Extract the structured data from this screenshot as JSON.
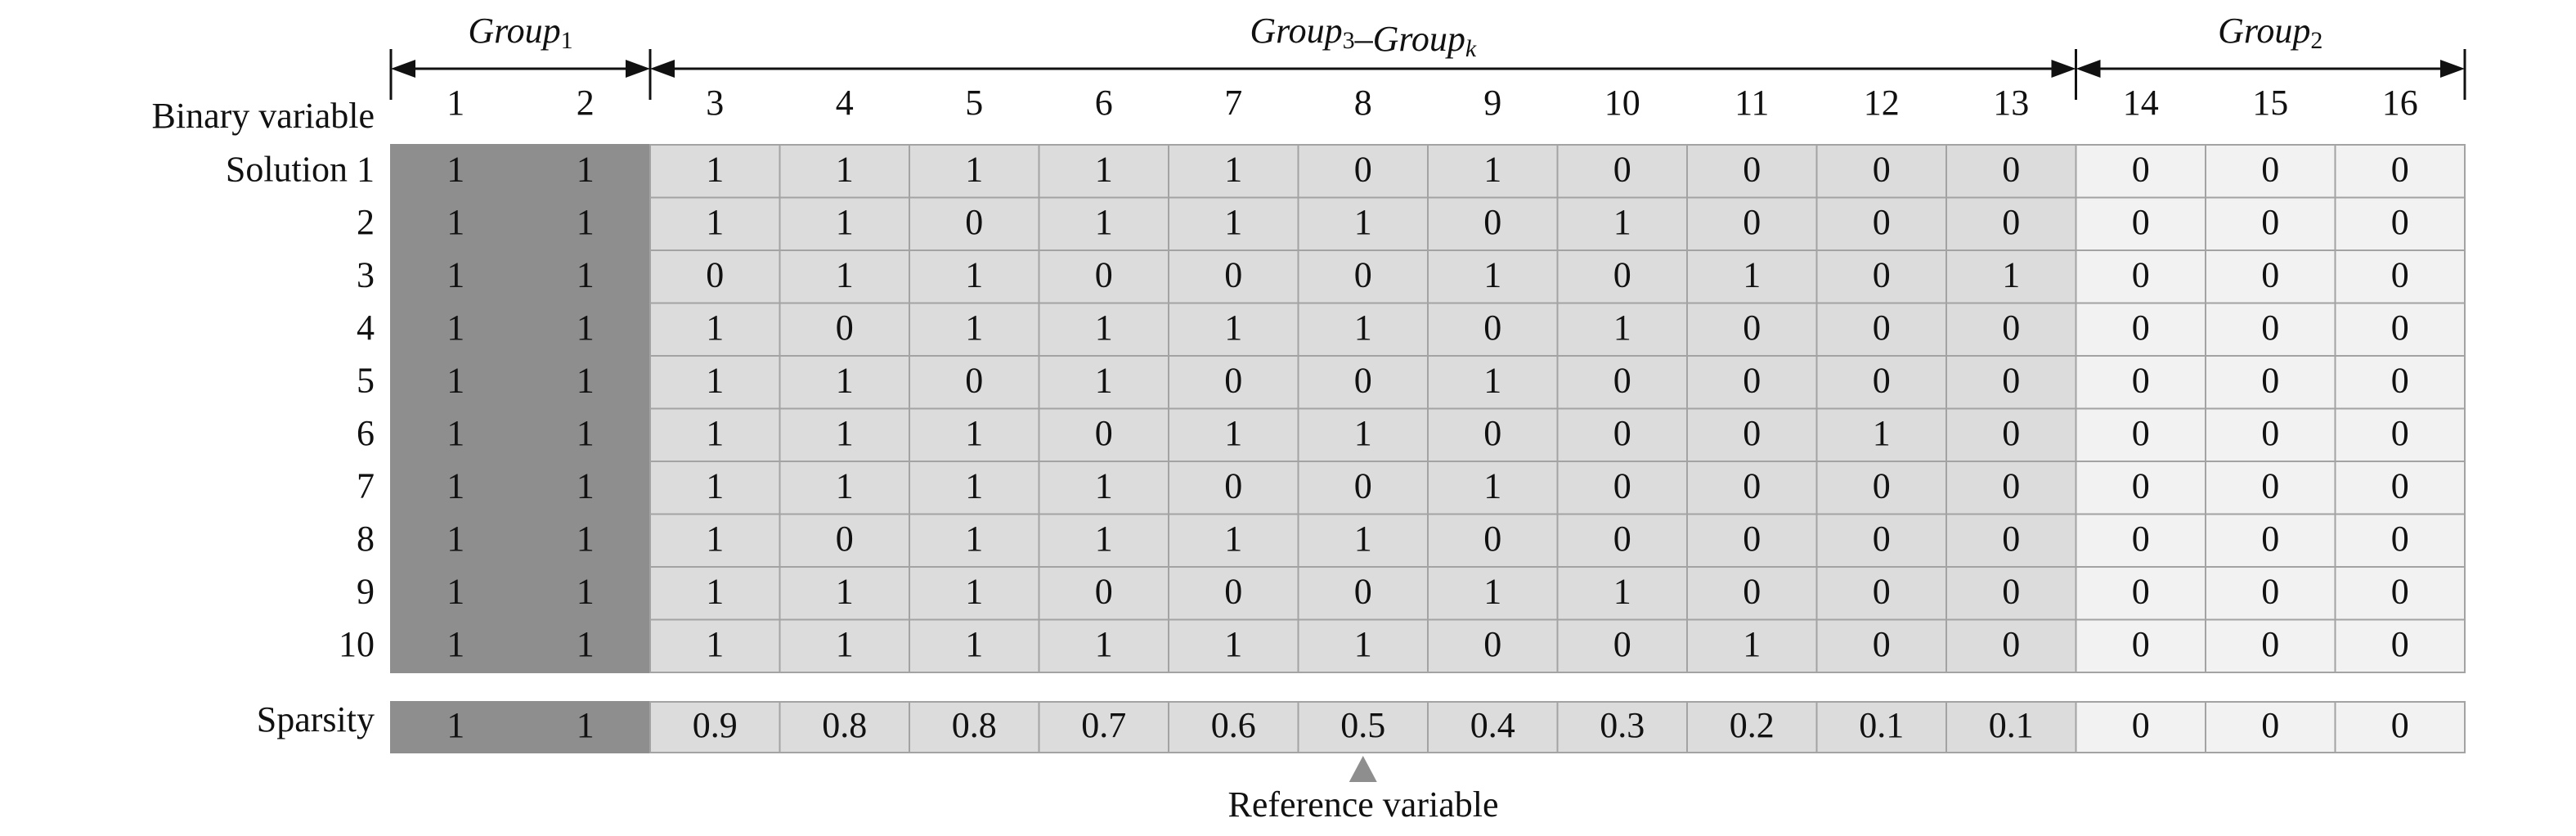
{
  "groups": [
    {
      "parts": [
        {
          "text": "Group",
          "sub": "1"
        }
      ]
    },
    {
      "parts": [
        {
          "text": "Group",
          "sub": "3"
        },
        {
          "text": "–Group",
          "sub": "k"
        }
      ]
    },
    {
      "parts": [
        {
          "text": "Group",
          "sub": "2"
        }
      ]
    }
  ],
  "row_header": "Binary variable",
  "variables": [
    1,
    2,
    3,
    4,
    5,
    6,
    7,
    8,
    9,
    10,
    11,
    12,
    13,
    14,
    15,
    16
  ],
  "solutions": [
    "Solution 1",
    "2",
    "3",
    "4",
    "5",
    "6",
    "7",
    "8",
    "9",
    "10"
  ],
  "rows": [
    [
      1,
      1,
      1,
      1,
      1,
      1,
      1,
      0,
      1,
      0,
      0,
      0,
      0,
      0,
      0,
      0
    ],
    [
      1,
      1,
      1,
      1,
      0,
      1,
      1,
      1,
      0,
      1,
      0,
      0,
      0,
      0,
      0,
      0
    ],
    [
      1,
      1,
      0,
      1,
      1,
      0,
      0,
      0,
      1,
      0,
      1,
      0,
      1,
      0,
      0,
      0
    ],
    [
      1,
      1,
      1,
      0,
      1,
      1,
      1,
      1,
      0,
      1,
      0,
      0,
      0,
      0,
      0,
      0
    ],
    [
      1,
      1,
      1,
      1,
      0,
      1,
      0,
      0,
      1,
      0,
      0,
      0,
      0,
      0,
      0,
      0
    ],
    [
      1,
      1,
      1,
      1,
      1,
      0,
      1,
      1,
      0,
      0,
      0,
      1,
      0,
      0,
      0,
      0
    ],
    [
      1,
      1,
      1,
      1,
      1,
      1,
      0,
      0,
      1,
      0,
      0,
      0,
      0,
      0,
      0,
      0
    ],
    [
      1,
      1,
      1,
      0,
      1,
      1,
      1,
      1,
      0,
      0,
      0,
      0,
      0,
      0,
      0,
      0
    ],
    [
      1,
      1,
      1,
      1,
      1,
      0,
      0,
      0,
      1,
      1,
      0,
      0,
      0,
      0,
      0,
      0
    ],
    [
      1,
      1,
      1,
      1,
      1,
      1,
      1,
      1,
      0,
      0,
      1,
      0,
      0,
      0,
      0,
      0
    ]
  ],
  "sparsity_label": "Sparsity",
  "sparsity": [
    1,
    1,
    0.9,
    0.8,
    0.8,
    0.7,
    0.6,
    0.5,
    0.4,
    0.3,
    0.2,
    0.1,
    0.1,
    0,
    0,
    0
  ],
  "reference_label": "Reference variable"
}
